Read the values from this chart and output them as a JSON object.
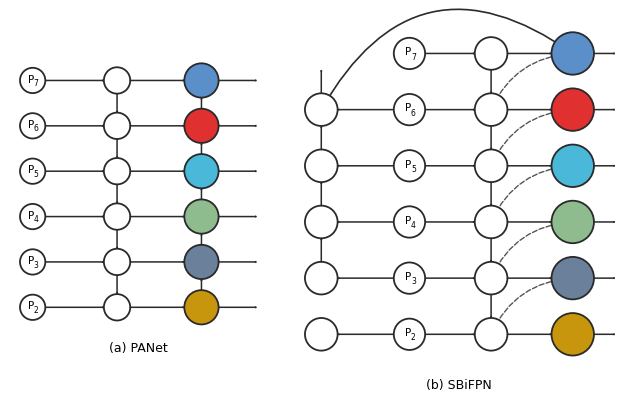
{
  "panet_label": "(a) PANet",
  "sbifpn_label": "(b) SBiFPN",
  "levels": [
    "P7",
    "P6",
    "P5",
    "P4",
    "P3",
    "P2"
  ],
  "colored_node_colors": [
    "#5b8fc9",
    "#e03030",
    "#4ab8d8",
    "#8fbc8f",
    "#6b809a",
    "#c8960c"
  ],
  "node_edge_color": "#2a2a2a",
  "arrow_color": "#2a2a2a",
  "dashed_color": "#555555",
  "background": "#ffffff",
  "node_r": 0.05,
  "label_r": 0.048,
  "colored_r": 0.065
}
